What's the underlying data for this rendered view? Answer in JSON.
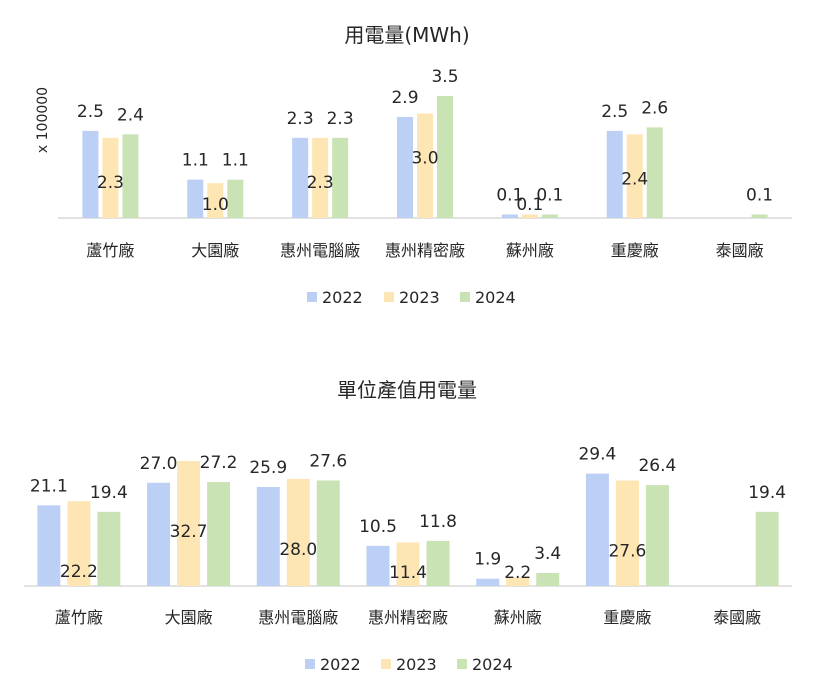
{
  "colors": {
    "s2022_fill": "#bcd0f5",
    "s2023_fill": "#fde6b3",
    "s2024_fill": "#c9e3b5"
  },
  "chart_data": [
    {
      "type": "bar",
      "title": "用電量(MWh)",
      "ylabel": "x 100000",
      "categories": [
        "蘆竹廠",
        "大園廠",
        "惠州電腦廠",
        "惠州精密廠",
        "蘇州廠",
        "重慶廠",
        "泰國廠"
      ],
      "series": [
        {
          "name": "2022",
          "values": [
            2.5,
            1.1,
            2.3,
            2.9,
            0.1,
            2.5,
            null
          ],
          "labels": [
            "2.5",
            "1.1",
            "2.3",
            "2.9",
            "0.1",
            "2.5",
            ""
          ]
        },
        {
          "name": "2023",
          "values": [
            2.3,
            1.0,
            2.3,
            3.0,
            0.1,
            2.4,
            null
          ],
          "labels": [
            "2.3",
            "1.0",
            "2.3",
            "3.0",
            "0.1",
            "2.4",
            ""
          ]
        },
        {
          "name": "2024",
          "values": [
            2.4,
            1.1,
            2.3,
            3.5,
            0.1,
            2.6,
            0.1
          ],
          "labels": [
            "2.4",
            "1.1",
            "2.3",
            "3.5",
            "0.1",
            "2.6",
            "0.1"
          ]
        }
      ],
      "ylim": [
        0,
        3.5
      ],
      "grid": false,
      "legend": "bottom"
    },
    {
      "type": "bar",
      "title": "單位產值用電量",
      "categories": [
        "蘆竹廠",
        "大園廠",
        "惠州電腦廠",
        "惠州精密廠",
        "蘇州廠",
        "重慶廠",
        "泰國廠"
      ],
      "series": [
        {
          "name": "2022",
          "values": [
            21.1,
            27.0,
            25.9,
            10.5,
            1.9,
            29.4,
            null
          ],
          "labels": [
            "21.1",
            "27.0",
            "25.9",
            "10.5",
            "1.9",
            "29.4",
            ""
          ]
        },
        {
          "name": "2023",
          "values": [
            22.2,
            32.7,
            28.0,
            11.4,
            2.2,
            27.6,
            null
          ],
          "labels": [
            "22.2",
            "32.7",
            "28.0",
            "11.4",
            "2.2",
            "27.6",
            ""
          ]
        },
        {
          "name": "2024",
          "values": [
            19.4,
            27.2,
            27.6,
            11.8,
            3.4,
            26.4,
            19.4
          ],
          "labels": [
            "19.4",
            "27.2",
            "27.6",
            "11.8",
            "3.4",
            "26.4",
            "19.4"
          ]
        }
      ],
      "ylim": [
        0,
        32.7
      ],
      "grid": false,
      "legend": "bottom"
    }
  ]
}
